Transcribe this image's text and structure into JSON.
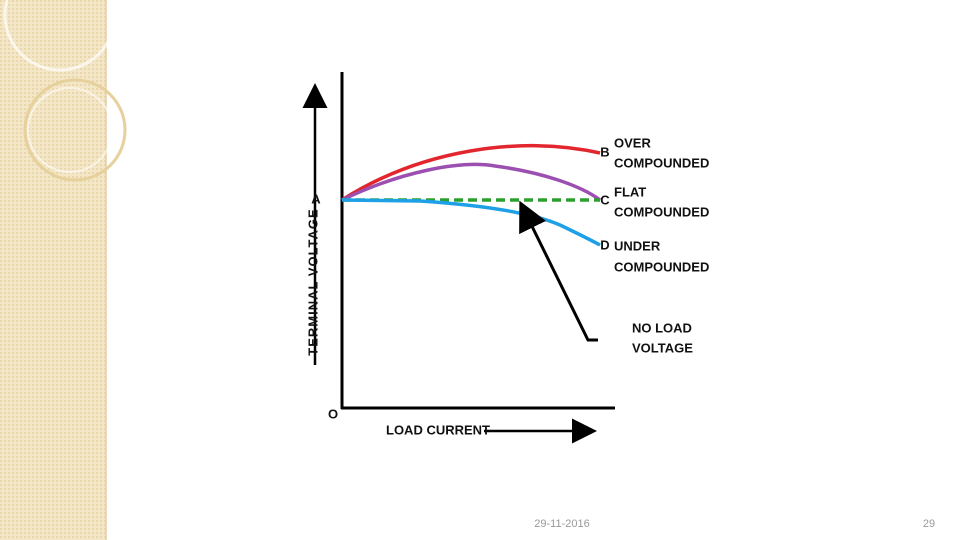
{
  "diagram": {
    "y_axis_label": "TERMINAL VOLTAGE",
    "x_axis_label": "LOAD CURRENT",
    "origin_label": "O",
    "start_point_label": "A",
    "curves": [
      {
        "point": "B",
        "label": [
          "OVER",
          "COMPOUNDED"
        ]
      },
      {
        "point": "C",
        "label": [
          "FLAT",
          "COMPOUNDED"
        ]
      },
      {
        "point": "D",
        "label": [
          "UNDER",
          "COMPOUNDED"
        ]
      }
    ],
    "reference_label": [
      "NO LOAD",
      "VOLTAGE"
    ]
  },
  "footer": {
    "date": "29-11-2016",
    "page_number": "29"
  }
}
